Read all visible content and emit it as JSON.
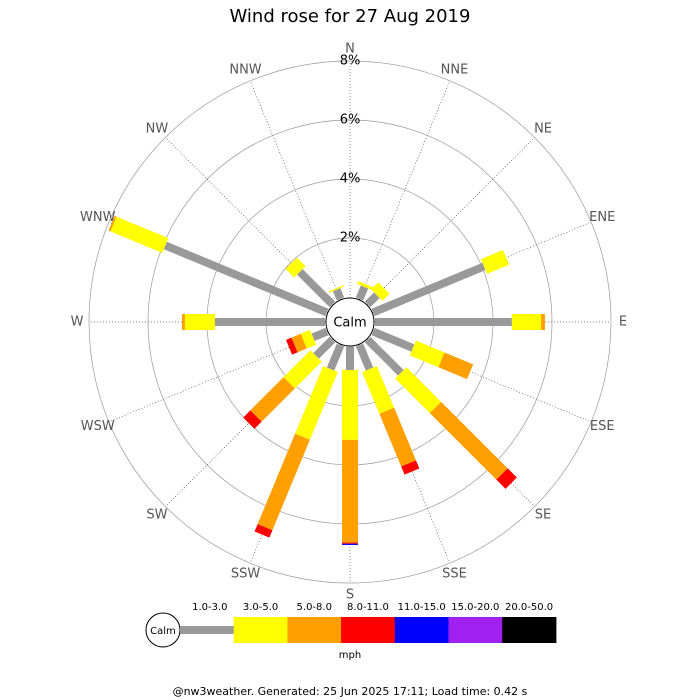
{
  "chart_data": {
    "type": "windrose",
    "title": "Wind rose for 27 Aug 2019",
    "categories": [
      "N",
      "NNE",
      "NE",
      "ENE",
      "E",
      "ESE",
      "SE",
      "SSE",
      "S",
      "SSW",
      "SW",
      "WSW",
      "W",
      "WNW",
      "NW",
      "NNW"
    ],
    "series": [
      {
        "name": "1.0-3.0",
        "color": "#999999",
        "values": [
          0,
          0.44,
          0.44,
          4.07,
          4.64,
          1.46,
          1.59,
          0.88,
          0.78,
          0.88,
          0.78,
          0.51,
          3.73,
          5.93,
          1.56,
          0.34
        ]
      },
      {
        "name": "3.0-5.0",
        "color": "#ffff00",
        "values": [
          0,
          0.1,
          0.34,
          0.81,
          0.99,
          1.05,
          1.66,
          1.53,
          2.37,
          2.48,
          1.29,
          0.34,
          1.02,
          1.9,
          0.41,
          0.05
        ]
      },
      {
        "name": "5.0-8.0",
        "color": "#ff9f00",
        "values": [
          0,
          0,
          0,
          0,
          0.13,
          1.05,
          3.19,
          1.93,
          3.48,
          3.32,
          1.59,
          0.34,
          0.1,
          0.07,
          0,
          0
        ]
      },
      {
        "name": "8.0-11.0",
        "color": "#ff0000",
        "values": [
          0,
          0,
          0,
          0,
          0,
          0,
          0.44,
          0.3,
          0.04,
          0.27,
          0.34,
          0.2,
          0,
          0,
          0,
          0
        ]
      },
      {
        "name": "11.0-15.0",
        "color": "#0000ff",
        "values": [
          0,
          0,
          0,
          0,
          0,
          0,
          0,
          0,
          0.04,
          0,
          0,
          0,
          0,
          0,
          0,
          0
        ]
      },
      {
        "name": "15.0-20.0",
        "color": "#a020f0",
        "values": [
          0,
          0,
          0,
          0,
          0,
          0,
          0,
          0,
          0,
          0,
          0,
          0,
          0,
          0,
          0,
          0
        ]
      },
      {
        "name": "20.0-50.0",
        "color": "#000000",
        "values": [
          0,
          0,
          0,
          0,
          0,
          0,
          0,
          0,
          0,
          0,
          0,
          0,
          0,
          0,
          0,
          0
        ]
      }
    ],
    "rlim": [
      0,
      8
    ],
    "rticks": [
      {
        "value": 2,
        "label": "2%"
      },
      {
        "value": 4,
        "label": "4%"
      },
      {
        "value": 6,
        "label": "6%"
      },
      {
        "value": 8,
        "label": "8%"
      }
    ],
    "calm_label": "Calm",
    "unit_label": "mph",
    "footer": "@nw3weather. Generated: 25 Jun 2025 17:11; Load time: 0.42 s"
  }
}
